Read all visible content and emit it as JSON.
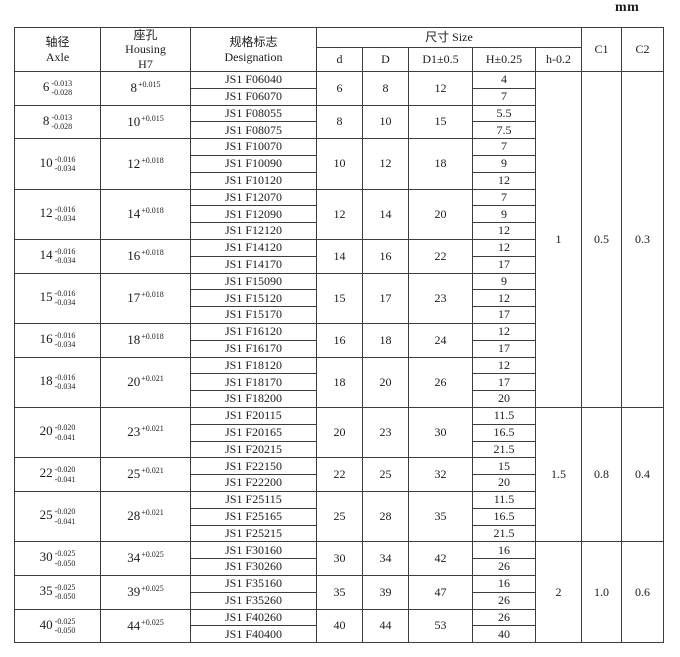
{
  "unit": "mm",
  "header": {
    "axle_zh": "轴径",
    "axle_en": "Axle",
    "housing_zh": "座孔",
    "housing_en": "Housing",
    "housing_fit": "H7",
    "designation_zh": "规格标志",
    "designation_en": "Designation",
    "size_label": "尺寸 Size",
    "size_cols": [
      "d",
      "D",
      "D1±0.5",
      "H±0.25",
      "h-0.2"
    ],
    "c1": "C1",
    "c2": "C2"
  },
  "groups": [
    {
      "axle": "6",
      "axle_tol_upper": "-0.013",
      "axle_tol_lower": "-0.028",
      "housing": "8",
      "housing_tol": "+0.015",
      "d": "6",
      "D": "8",
      "D1": "12",
      "rows": [
        {
          "designation": "JS1 F06040",
          "H": "4"
        },
        {
          "designation": "JS1 F06070",
          "H": "7"
        }
      ]
    },
    {
      "axle": "8",
      "axle_tol_upper": "-0.013",
      "axle_tol_lower": "-0.028",
      "housing": "10",
      "housing_tol": "+0.015",
      "d": "8",
      "D": "10",
      "D1": "15",
      "rows": [
        {
          "designation": "JS1 F08055",
          "H": "5.5"
        },
        {
          "designation": "JS1 F08075",
          "H": "7.5"
        }
      ]
    },
    {
      "axle": "10",
      "axle_tol_upper": "-0.016",
      "axle_tol_lower": "-0.034",
      "housing": "12",
      "housing_tol": "+0.018",
      "d": "10",
      "D": "12",
      "D1": "18",
      "rows": [
        {
          "designation": "JS1 F10070",
          "H": "7"
        },
        {
          "designation": "JS1 F10090",
          "H": "9"
        },
        {
          "designation": "JS1 F10120",
          "H": "12"
        }
      ]
    },
    {
      "axle": "12",
      "axle_tol_upper": "-0.016",
      "axle_tol_lower": "-0.034",
      "housing": "14",
      "housing_tol": "+0.018",
      "d": "12",
      "D": "14",
      "D1": "20",
      "rows": [
        {
          "designation": "JS1 F12070",
          "H": "7"
        },
        {
          "designation": "JS1 F12090",
          "H": "9"
        },
        {
          "designation": "JS1 F12120",
          "H": "12"
        }
      ]
    },
    {
      "axle": "14",
      "axle_tol_upper": "-0.016",
      "axle_tol_lower": "-0.034",
      "housing": "16",
      "housing_tol": "+0.018",
      "d": "14",
      "D": "16",
      "D1": "22",
      "rows": [
        {
          "designation": "JS1 F14120",
          "H": "12"
        },
        {
          "designation": "JS1 F14170",
          "H": "17"
        }
      ]
    },
    {
      "axle": "15",
      "axle_tol_upper": "-0.016",
      "axle_tol_lower": "-0.034",
      "housing": "17",
      "housing_tol": "+0.018",
      "d": "15",
      "D": "17",
      "D1": "23",
      "rows": [
        {
          "designation": "JS1 F15090",
          "H": "9"
        },
        {
          "designation": "JS1 F15120",
          "H": "12"
        },
        {
          "designation": "JS1 F15170",
          "H": "17"
        }
      ]
    },
    {
      "axle": "16",
      "axle_tol_upper": "-0.016",
      "axle_tol_lower": "-0.034",
      "housing": "18",
      "housing_tol": "+0.018",
      "d": "16",
      "D": "18",
      "D1": "24",
      "rows": [
        {
          "designation": "JS1 F16120",
          "H": "12"
        },
        {
          "designation": "JS1 F16170",
          "H": "17"
        }
      ]
    },
    {
      "axle": "18",
      "axle_tol_upper": "-0.016",
      "axle_tol_lower": "-0.034",
      "housing": "20",
      "housing_tol": "+0.021",
      "d": "18",
      "D": "20",
      "D1": "26",
      "rows": [
        {
          "designation": "JS1 F18120",
          "H": "12"
        },
        {
          "designation": "JS1 F18170",
          "H": "17"
        },
        {
          "designation": "JS1 F18200",
          "H": "20"
        }
      ]
    },
    {
      "axle": "20",
      "axle_tol_upper": "-0.020",
      "axle_tol_lower": "-0.041",
      "housing": "23",
      "housing_tol": "+0.021",
      "d": "20",
      "D": "23",
      "D1": "30",
      "rows": [
        {
          "designation": "JS1 F20115",
          "H": "11.5"
        },
        {
          "designation": "JS1 F20165",
          "H": "16.5"
        },
        {
          "designation": "JS1 F20215",
          "H": "21.5"
        }
      ]
    },
    {
      "axle": "22",
      "axle_tol_upper": "-0.020",
      "axle_tol_lower": "-0.041",
      "housing": "25",
      "housing_tol": "+0.021",
      "d": "22",
      "D": "25",
      "D1": "32",
      "rows": [
        {
          "designation": "JS1 F22150",
          "H": "15"
        },
        {
          "designation": "JS1 F22200",
          "H": "20"
        }
      ]
    },
    {
      "axle": "25",
      "axle_tol_upper": "-0.020",
      "axle_tol_lower": "-0.041",
      "housing": "28",
      "housing_tol": "+0.021",
      "d": "25",
      "D": "28",
      "D1": "35",
      "rows": [
        {
          "designation": "JS1 F25115",
          "H": "11.5"
        },
        {
          "designation": "JS1 F25165",
          "H": "16.5"
        },
        {
          "designation": "JS1 F25215",
          "H": "21.5"
        }
      ]
    },
    {
      "axle": "30",
      "axle_tol_upper": "-0.025",
      "axle_tol_lower": "-0.050",
      "housing": "34",
      "housing_tol": "+0.025",
      "d": "30",
      "D": "34",
      "D1": "42",
      "rows": [
        {
          "designation": "JS1 F30160",
          "H": "16"
        },
        {
          "designation": "JS1 F30260",
          "H": "26"
        }
      ]
    },
    {
      "axle": "35",
      "axle_tol_upper": "-0.025",
      "axle_tol_lower": "-0.050",
      "housing": "39",
      "housing_tol": "+0.025",
      "d": "35",
      "D": "39",
      "D1": "47",
      "rows": [
        {
          "designation": "JS1 F35160",
          "H": "16"
        },
        {
          "designation": "JS1 F35260",
          "H": "26"
        }
      ]
    },
    {
      "axle": "40",
      "axle_tol_upper": "-0.025",
      "axle_tol_lower": "-0.050",
      "housing": "44",
      "housing_tol": "+0.025",
      "d": "40",
      "D": "44",
      "D1": "53",
      "rows": [
        {
          "designation": "JS1 F40260",
          "H": "26"
        },
        {
          "designation": "JS1 F40400",
          "H": "40"
        }
      ]
    }
  ],
  "bands": [
    {
      "h": "1",
      "c1": "0.5",
      "c2": "0.3",
      "group_count": 8
    },
    {
      "h": "1.5",
      "c1": "0.8",
      "c2": "0.4",
      "group_count": 3
    },
    {
      "h": "2",
      "c1": "1.0",
      "c2": "0.6",
      "group_count": 3
    }
  ]
}
